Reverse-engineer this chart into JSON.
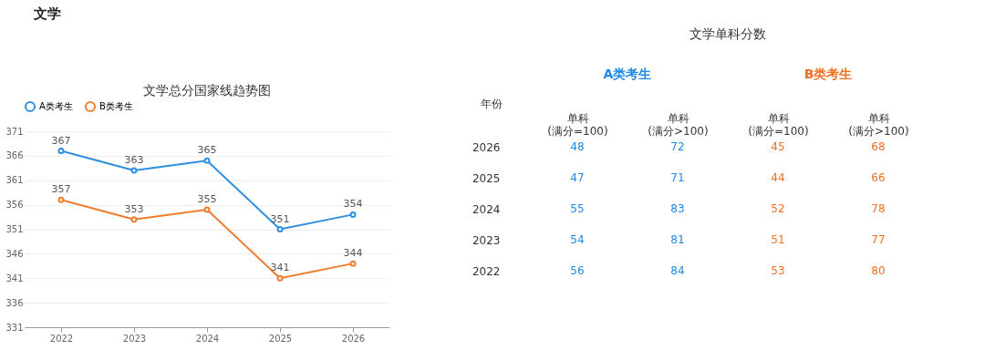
{
  "chart_data": [
    {
      "type": "other",
      "title": "文学"
    },
    {
      "type": "line",
      "title": "文学总分国家线趋势图",
      "categories": [
        "2022",
        "2023",
        "2024",
        "2025",
        "2026"
      ],
      "series": [
        {
          "name": "A类考生",
          "color": "#2f8fe0",
          "values": [
            367,
            363,
            365,
            351,
            354
          ]
        },
        {
          "name": "B类考生",
          "color": "#ef7d2f",
          "values": [
            357,
            353,
            355,
            341,
            344
          ]
        }
      ],
      "ylim": [
        331,
        371
      ],
      "yticks": [
        331,
        336,
        341,
        346,
        351,
        356,
        361,
        366,
        371
      ],
      "grid": "y",
      "legend": "top",
      "marker": "circle",
      "line_style": "solid",
      "data_labels": true
    },
    {
      "type": "heatmap",
      "title": "文学单科分数",
      "ylabel": "年份",
      "annotations": [
        "A类考生",
        "B类考生"
      ],
      "categories": [
        "单科\n(满分=100)",
        "单科\n(满分>100)",
        "单科\n(满分=100)",
        "单科\n(满分>100)"
      ],
      "colors": [
        "#1e88e5",
        "#1e88e5",
        "#f07020",
        "#f07020"
      ],
      "y_categories": [
        "2026",
        "2025",
        "2024",
        "2023",
        "2022"
      ],
      "cells": [
        [
          48,
          72,
          45,
          68
        ],
        [
          47,
          71,
          44,
          66
        ],
        [
          55,
          83,
          52,
          78
        ],
        [
          54,
          81,
          51,
          77
        ],
        [
          56,
          84,
          53,
          80
        ]
      ],
      "data_labels": true
    }
  ]
}
